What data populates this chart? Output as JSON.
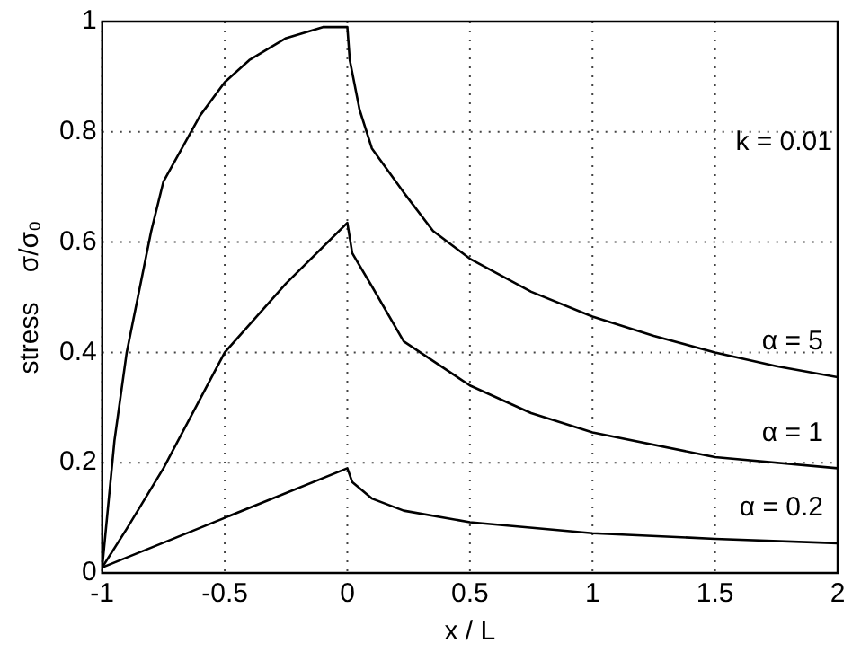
{
  "chart_data": {
    "type": "line",
    "xlabel": "x / L",
    "ylabel": "stress    σ/σ₀",
    "annotations": [
      "k = 0.01"
    ],
    "xlim": [
      -1,
      2
    ],
    "xticks": [
      -1,
      -0.5,
      0,
      0.5,
      1,
      1.5,
      2
    ],
    "ylim": [
      0,
      1
    ],
    "yticks": [
      0,
      0.2,
      0.4,
      0.6,
      0.8,
      1
    ],
    "grid": true,
    "legend": false,
    "marker": "none",
    "line_style": "solid",
    "series": [
      {
        "name": "α = 5",
        "color": "#000000",
        "x": [
          -1,
          -0.95,
          -0.9,
          -0.8,
          -0.75,
          -0.6,
          -0.5,
          -0.4,
          -0.25,
          -0.1,
          0,
          0.01,
          0.05,
          0.1,
          0.23,
          0.35,
          0.5,
          0.75,
          1,
          1.25,
          1.5,
          1.75,
          2
        ],
        "values": [
          0.01,
          0.24,
          0.4,
          0.62,
          0.71,
          0.83,
          0.89,
          0.93,
          0.97,
          0.99,
          0.99,
          0.93,
          0.84,
          0.77,
          0.69,
          0.62,
          0.57,
          0.51,
          0.465,
          0.43,
          0.4,
          0.375,
          0.355
        ]
      },
      {
        "name": "α = 1",
        "color": "#000000",
        "x": [
          -1,
          -0.9,
          -0.75,
          -0.5,
          -0.25,
          0,
          0.02,
          0.1,
          0.23,
          0.5,
          0.75,
          1,
          1.5,
          2
        ],
        "values": [
          0.01,
          0.08,
          0.19,
          0.4,
          0.525,
          0.635,
          0.58,
          0.52,
          0.42,
          0.34,
          0.29,
          0.255,
          0.21,
          0.19
        ]
      },
      {
        "name": "α = 0.2",
        "color": "#000000",
        "x": [
          -1,
          -0.5,
          0,
          0.02,
          0.1,
          0.23,
          0.5,
          1,
          1.5,
          2
        ],
        "values": [
          0.01,
          0.1,
          0.19,
          0.165,
          0.135,
          0.113,
          0.092,
          0.072,
          0.062,
          0.054
        ]
      }
    ]
  }
}
